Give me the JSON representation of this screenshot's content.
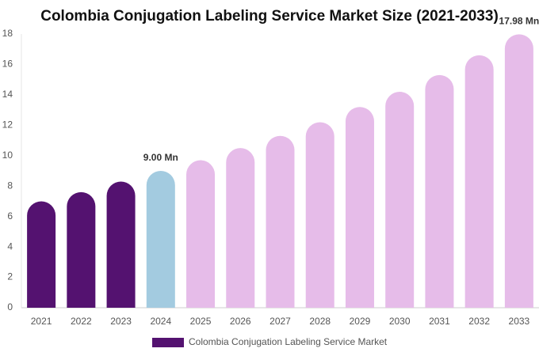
{
  "chart_data": {
    "type": "bar",
    "title": "Colombia Conjugation Labeling Service Market Size (2021-2033)",
    "categories": [
      "2021",
      "2022",
      "2023",
      "2024",
      "2025",
      "2026",
      "2027",
      "2028",
      "2029",
      "2030",
      "2031",
      "2032",
      "2033"
    ],
    "series": [
      {
        "name": "Colombia Conjugation Labeling Service Market",
        "color": "#541270",
        "colors": [
          "#541270",
          "#541270",
          "#541270",
          "#a3cbe0",
          "#e6bce9",
          "#e6bce9",
          "#e6bce9",
          "#e6bce9",
          "#e6bce9",
          "#e6bce9",
          "#e6bce9",
          "#e6bce9",
          "#e6bce9"
        ],
        "values": [
          7.0,
          7.6,
          8.3,
          9.0,
          9.7,
          10.5,
          11.3,
          12.2,
          13.2,
          14.2,
          15.3,
          16.6,
          17.98
        ],
        "value_labels": [
          null,
          null,
          null,
          "9.00 Mn",
          null,
          null,
          null,
          null,
          null,
          null,
          null,
          null,
          "17.98 Mn"
        ]
      }
    ],
    "ylim": [
      0,
      18
    ],
    "yticks": [
      0,
      2,
      4,
      6,
      8,
      10,
      12,
      14,
      16,
      18
    ],
    "grid": false
  }
}
